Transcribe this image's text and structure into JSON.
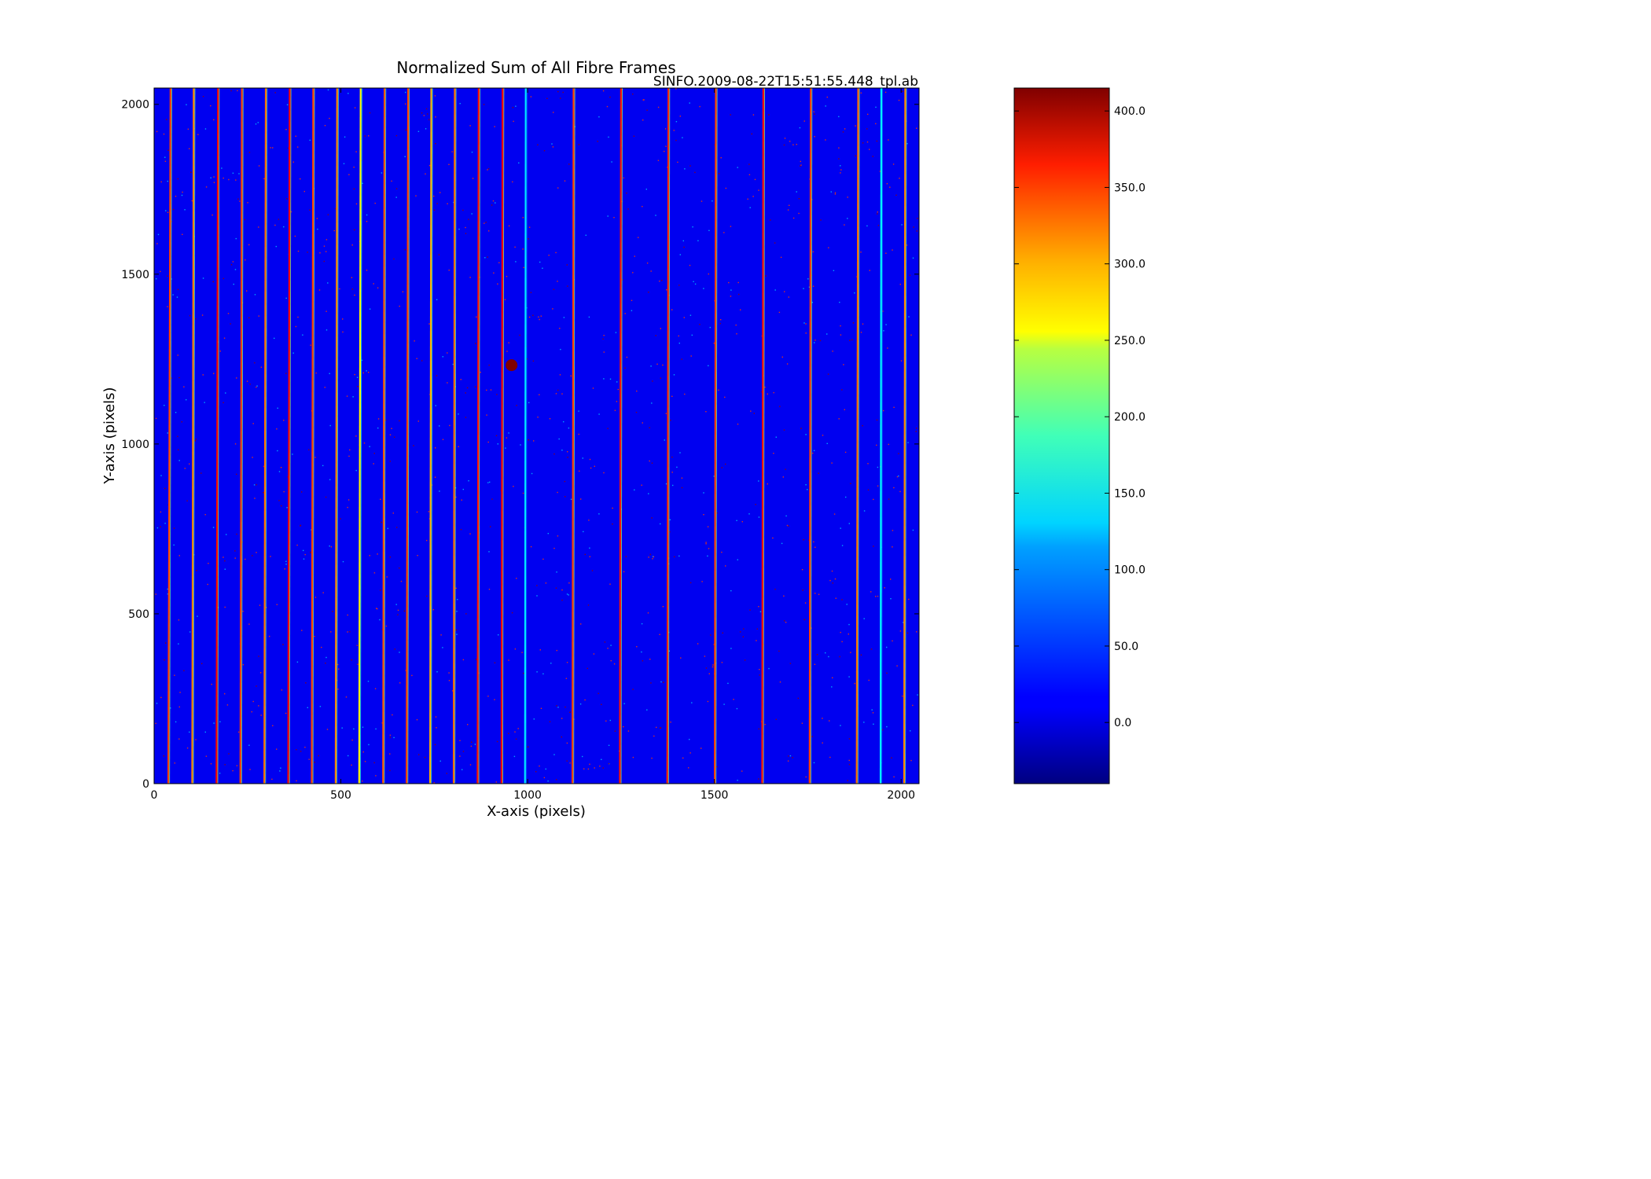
{
  "chart_data": {
    "type": "heatmap",
    "title": "Normalized Sum of All Fibre Frames",
    "subtitle": "SINFO.2009-08-22T15:51:55.448_tpl.ab",
    "xlabel": "X-axis (pixels)",
    "ylabel": "Y-axis (pixels)",
    "xlim": [
      0,
      2048
    ],
    "ylim": [
      0,
      2048
    ],
    "xticks": [
      0,
      500,
      1000,
      1500,
      2000
    ],
    "yticks": [
      0,
      500,
      1000,
      1500,
      2000
    ],
    "colormap": "jet",
    "background_value": 10,
    "colorbar": {
      "range": [
        -40,
        415
      ],
      "ticks": [
        0,
        50,
        100,
        150,
        200,
        250,
        300,
        350,
        400
      ],
      "tick_labels": [
        "0.0",
        "50.0",
        "100.0",
        "150.0",
        "200.0",
        "250.0",
        "300.0",
        "350.0",
        "400.0"
      ]
    },
    "fibre_lines": [
      {
        "x": 38,
        "value": 330,
        "drift": 6
      },
      {
        "x": 102,
        "value": 300,
        "drift": 4
      },
      {
        "x": 167,
        "value": 360,
        "drift": 4
      },
      {
        "x": 231,
        "value": 330,
        "drift": 4
      },
      {
        "x": 295,
        "value": 310,
        "drift": 4
      },
      {
        "x": 359,
        "value": 360,
        "drift": 4
      },
      {
        "x": 422,
        "value": 330,
        "drift": 4
      },
      {
        "x": 486,
        "value": 300,
        "drift": 4
      },
      {
        "x": 549,
        "value": 250,
        "drift": 4
      },
      {
        "x": 613,
        "value": 320,
        "drift": 4
      },
      {
        "x": 676,
        "value": 330,
        "drift": 4
      },
      {
        "x": 739,
        "value": 280,
        "drift": 3
      },
      {
        "x": 802,
        "value": 310,
        "drift": 3
      },
      {
        "x": 866,
        "value": 350,
        "drift": 3
      },
      {
        "x": 930,
        "value": 360,
        "drift": 3
      },
      {
        "x": 993,
        "value": 120,
        "drift": 2
      },
      {
        "x": 1120,
        "value": 330,
        "drift": 3
      },
      {
        "x": 1247,
        "value": 350,
        "drift": 3
      },
      {
        "x": 1374,
        "value": 340,
        "drift": 3
      },
      {
        "x": 1501,
        "value": 330,
        "drift": 3
      },
      {
        "x": 1628,
        "value": 350,
        "drift": 3
      },
      {
        "x": 1755,
        "value": 330,
        "drift": 3
      },
      {
        "x": 1881,
        "value": 310,
        "drift": 4
      },
      {
        "x": 1945,
        "value": 130,
        "drift": 2
      },
      {
        "x": 2008,
        "value": 300,
        "drift": 3
      }
    ],
    "spot": {
      "x": 957,
      "y": 1232,
      "value": 415
    }
  }
}
